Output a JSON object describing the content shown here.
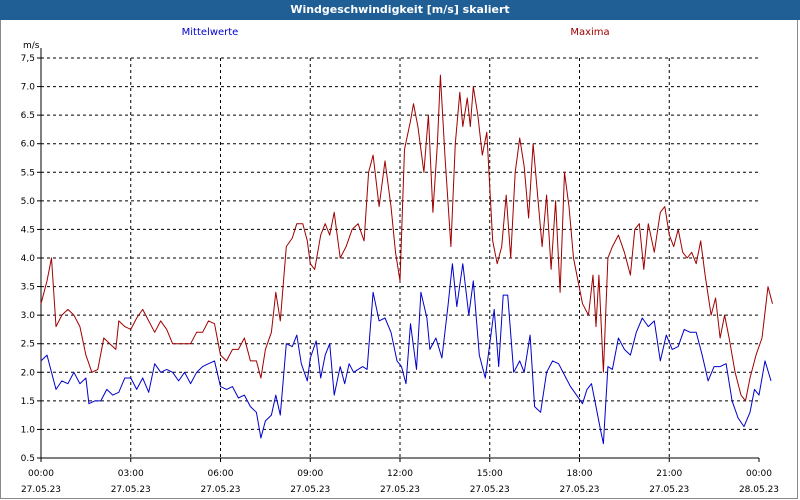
{
  "window": {
    "title": "Windgeschwindigkeit [m/s] skaliert"
  },
  "colors": {
    "mean": "#0000cc",
    "max": "#a00000",
    "title_bar": "#1f5f96",
    "grid": "#000000"
  },
  "chart_data": {
    "type": "line",
    "title": "Windgeschwindigkeit [m/s] skaliert",
    "ylabel": "m/s",
    "ylim": [
      0.5,
      7.5
    ],
    "xlim": [
      0,
      24
    ],
    "grid": true,
    "yticks": [
      "0.5",
      "1.0",
      "1.5",
      "2.0",
      "2.5",
      "3.0",
      "3.5",
      "4.0",
      "4.5",
      "5.0",
      "5.5",
      "6.0",
      "6.5",
      "7.0",
      "7,5"
    ],
    "xticks": [
      {
        "x": 0,
        "time": "00:00",
        "date": "27.05.23"
      },
      {
        "x": 3,
        "time": "03:00",
        "date": "27.05.23"
      },
      {
        "x": 6,
        "time": "06:00",
        "date": "27.05.23"
      },
      {
        "x": 9,
        "time": "09:00",
        "date": "27.05.23"
      },
      {
        "x": 12,
        "time": "12:00",
        "date": "27.05.23"
      },
      {
        "x": 15,
        "time": "15:00",
        "date": "27.05.23"
      },
      {
        "x": 18,
        "time": "18:00",
        "date": "27.05.23"
      },
      {
        "x": 21,
        "time": "21:00",
        "date": "27.05.23"
      },
      {
        "x": 24,
        "time": "00:00",
        "date": "28.05.23"
      }
    ],
    "series": [
      {
        "name": "Mittelwerte",
        "color": "#0000cc",
        "points": [
          [
            0,
            2.2
          ],
          [
            0.2,
            2.3
          ],
          [
            0.5,
            1.7
          ],
          [
            0.7,
            1.85
          ],
          [
            0.9,
            1.8
          ],
          [
            1.1,
            2.0
          ],
          [
            1.3,
            1.8
          ],
          [
            1.5,
            1.9
          ],
          [
            1.6,
            1.45
          ],
          [
            1.8,
            1.5
          ],
          [
            2.0,
            1.5
          ],
          [
            2.2,
            1.7
          ],
          [
            2.4,
            1.6
          ],
          [
            2.6,
            1.65
          ],
          [
            2.8,
            1.9
          ],
          [
            3.0,
            1.9
          ],
          [
            3.2,
            1.7
          ],
          [
            3.4,
            1.9
          ],
          [
            3.6,
            1.65
          ],
          [
            3.8,
            2.15
          ],
          [
            4.0,
            2.0
          ],
          [
            4.2,
            2.05
          ],
          [
            4.4,
            2.0
          ],
          [
            4.6,
            1.85
          ],
          [
            4.8,
            2.0
          ],
          [
            5.0,
            1.8
          ],
          [
            5.2,
            2.0
          ],
          [
            5.4,
            2.1
          ],
          [
            5.6,
            2.15
          ],
          [
            5.8,
            2.2
          ],
          [
            6.0,
            1.75
          ],
          [
            6.2,
            1.7
          ],
          [
            6.4,
            1.75
          ],
          [
            6.6,
            1.55
          ],
          [
            6.8,
            1.6
          ],
          [
            7.0,
            1.4
          ],
          [
            7.2,
            1.3
          ],
          [
            7.35,
            0.85
          ],
          [
            7.5,
            1.15
          ],
          [
            7.7,
            1.25
          ],
          [
            7.85,
            1.6
          ],
          [
            8.0,
            1.25
          ],
          [
            8.2,
            2.5
          ],
          [
            8.4,
            2.45
          ],
          [
            8.55,
            2.65
          ],
          [
            8.7,
            2.15
          ],
          [
            8.9,
            1.85
          ],
          [
            9.0,
            2.25
          ],
          [
            9.2,
            2.55
          ],
          [
            9.35,
            1.9
          ],
          [
            9.5,
            2.3
          ],
          [
            9.65,
            2.5
          ],
          [
            9.8,
            1.6
          ],
          [
            10.0,
            2.1
          ],
          [
            10.15,
            1.8
          ],
          [
            10.3,
            2.15
          ],
          [
            10.45,
            2.0
          ],
          [
            10.6,
            2.05
          ],
          [
            10.75,
            2.1
          ],
          [
            10.9,
            2.05
          ],
          [
            11.1,
            3.4
          ],
          [
            11.3,
            2.9
          ],
          [
            11.5,
            2.95
          ],
          [
            11.7,
            2.7
          ],
          [
            11.9,
            2.2
          ],
          [
            12.05,
            2.1
          ],
          [
            12.2,
            1.8
          ],
          [
            12.35,
            2.85
          ],
          [
            12.55,
            2.05
          ],
          [
            12.7,
            3.4
          ],
          [
            12.9,
            2.95
          ],
          [
            13.0,
            2.4
          ],
          [
            13.2,
            2.6
          ],
          [
            13.4,
            2.25
          ],
          [
            13.6,
            3.15
          ],
          [
            13.75,
            3.9
          ],
          [
            13.9,
            3.15
          ],
          [
            14.1,
            3.9
          ],
          [
            14.3,
            3.0
          ],
          [
            14.45,
            3.6
          ],
          [
            14.65,
            2.3
          ],
          [
            14.85,
            1.9
          ],
          [
            15.0,
            2.5
          ],
          [
            15.15,
            3.1
          ],
          [
            15.3,
            2.1
          ],
          [
            15.45,
            3.35
          ],
          [
            15.6,
            3.35
          ],
          [
            15.8,
            2.0
          ],
          [
            16.0,
            2.2
          ],
          [
            16.15,
            2.0
          ],
          [
            16.35,
            2.65
          ],
          [
            16.5,
            1.4
          ],
          [
            16.7,
            1.3
          ],
          [
            16.9,
            2.0
          ],
          [
            17.1,
            2.2
          ],
          [
            17.3,
            2.15
          ],
          [
            17.5,
            1.95
          ],
          [
            17.7,
            1.75
          ],
          [
            17.9,
            1.6
          ],
          [
            18.1,
            1.45
          ],
          [
            18.25,
            1.7
          ],
          [
            18.4,
            1.8
          ],
          [
            18.55,
            1.4
          ],
          [
            18.7,
            1.0
          ],
          [
            18.8,
            0.75
          ],
          [
            18.95,
            2.1
          ],
          [
            19.1,
            2.05
          ],
          [
            19.3,
            2.6
          ],
          [
            19.5,
            2.4
          ],
          [
            19.7,
            2.3
          ],
          [
            19.9,
            2.7
          ],
          [
            20.1,
            2.95
          ],
          [
            20.3,
            2.8
          ],
          [
            20.5,
            2.9
          ],
          [
            20.7,
            2.2
          ],
          [
            20.9,
            2.65
          ],
          [
            21.1,
            2.4
          ],
          [
            21.3,
            2.45
          ],
          [
            21.5,
            2.75
          ],
          [
            21.7,
            2.7
          ],
          [
            21.9,
            2.7
          ],
          [
            22.1,
            2.3
          ],
          [
            22.3,
            1.85
          ],
          [
            22.5,
            2.1
          ],
          [
            22.7,
            2.1
          ],
          [
            22.9,
            2.15
          ],
          [
            23.1,
            1.5
          ],
          [
            23.3,
            1.2
          ],
          [
            23.5,
            1.05
          ],
          [
            23.7,
            1.3
          ],
          [
            23.85,
            1.7
          ],
          [
            24.0,
            1.6
          ],
          [
            24.2,
            2.2
          ],
          [
            24.4,
            1.85
          ]
        ]
      },
      {
        "name": "Maxima",
        "color": "#a00000",
        "points": [
          [
            0,
            3.2
          ],
          [
            0.2,
            3.6
          ],
          [
            0.35,
            4.0
          ],
          [
            0.5,
            2.8
          ],
          [
            0.7,
            3.0
          ],
          [
            0.9,
            3.1
          ],
          [
            1.1,
            3.0
          ],
          [
            1.3,
            2.8
          ],
          [
            1.5,
            2.3
          ],
          [
            1.7,
            2.0
          ],
          [
            1.9,
            2.05
          ],
          [
            2.1,
            2.6
          ],
          [
            2.3,
            2.5
          ],
          [
            2.5,
            2.4
          ],
          [
            2.6,
            2.9
          ],
          [
            2.8,
            2.8
          ],
          [
            3.0,
            2.75
          ],
          [
            3.2,
            2.95
          ],
          [
            3.4,
            3.1
          ],
          [
            3.6,
            2.9
          ],
          [
            3.8,
            2.7
          ],
          [
            4.0,
            2.9
          ],
          [
            4.2,
            2.75
          ],
          [
            4.4,
            2.5
          ],
          [
            4.6,
            2.5
          ],
          [
            4.8,
            2.5
          ],
          [
            5.0,
            2.5
          ],
          [
            5.2,
            2.7
          ],
          [
            5.4,
            2.7
          ],
          [
            5.6,
            2.9
          ],
          [
            5.8,
            2.85
          ],
          [
            6.0,
            2.3
          ],
          [
            6.2,
            2.2
          ],
          [
            6.4,
            2.4
          ],
          [
            6.6,
            2.4
          ],
          [
            6.8,
            2.6
          ],
          [
            7.0,
            2.2
          ],
          [
            7.2,
            2.2
          ],
          [
            7.35,
            1.9
          ],
          [
            7.5,
            2.4
          ],
          [
            7.7,
            2.7
          ],
          [
            7.85,
            3.4
          ],
          [
            8.0,
            2.9
          ],
          [
            8.2,
            4.2
          ],
          [
            8.4,
            4.35
          ],
          [
            8.55,
            4.6
          ],
          [
            8.75,
            4.6
          ],
          [
            8.9,
            4.3
          ],
          [
            9.0,
            3.9
          ],
          [
            9.15,
            3.8
          ],
          [
            9.35,
            4.4
          ],
          [
            9.5,
            4.6
          ],
          [
            9.65,
            4.4
          ],
          [
            9.8,
            4.8
          ],
          [
            10.0,
            4.0
          ],
          [
            10.2,
            4.2
          ],
          [
            10.4,
            4.5
          ],
          [
            10.6,
            4.6
          ],
          [
            10.8,
            4.3
          ],
          [
            10.95,
            5.5
          ],
          [
            11.1,
            5.8
          ],
          [
            11.3,
            4.9
          ],
          [
            11.5,
            5.7
          ],
          [
            11.7,
            4.9
          ],
          [
            11.85,
            4.1
          ],
          [
            12.0,
            3.6
          ],
          [
            12.15,
            5.9
          ],
          [
            12.35,
            6.4
          ],
          [
            12.45,
            6.7
          ],
          [
            12.6,
            6.3
          ],
          [
            12.8,
            5.5
          ],
          [
            12.95,
            6.5
          ],
          [
            13.1,
            4.8
          ],
          [
            13.25,
            6.0
          ],
          [
            13.35,
            7.2
          ],
          [
            13.5,
            5.8
          ],
          [
            13.7,
            4.2
          ],
          [
            13.85,
            6.0
          ],
          [
            14.0,
            6.9
          ],
          [
            14.1,
            6.3
          ],
          [
            14.25,
            6.8
          ],
          [
            14.35,
            6.3
          ],
          [
            14.45,
            7.0
          ],
          [
            14.6,
            6.5
          ],
          [
            14.75,
            5.8
          ],
          [
            14.9,
            6.2
          ],
          [
            15.1,
            4.3
          ],
          [
            15.25,
            3.9
          ],
          [
            15.4,
            4.2
          ],
          [
            15.55,
            5.1
          ],
          [
            15.7,
            4.0
          ],
          [
            15.85,
            5.5
          ],
          [
            16.0,
            6.1
          ],
          [
            16.15,
            5.6
          ],
          [
            16.3,
            4.7
          ],
          [
            16.45,
            6.0
          ],
          [
            16.6,
            5.1
          ],
          [
            16.75,
            4.2
          ],
          [
            16.9,
            5.1
          ],
          [
            17.05,
            3.8
          ],
          [
            17.2,
            5.0
          ],
          [
            17.35,
            3.4
          ],
          [
            17.5,
            5.5
          ],
          [
            17.65,
            4.9
          ],
          [
            17.8,
            4.0
          ],
          [
            17.95,
            3.6
          ],
          [
            18.1,
            3.2
          ],
          [
            18.3,
            3.0
          ],
          [
            18.45,
            3.7
          ],
          [
            18.55,
            2.8
          ],
          [
            18.65,
            3.7
          ],
          [
            18.8,
            2.0
          ],
          [
            18.95,
            4.0
          ],
          [
            19.1,
            4.2
          ],
          [
            19.3,
            4.4
          ],
          [
            19.5,
            4.1
          ],
          [
            19.7,
            3.7
          ],
          [
            19.85,
            4.5
          ],
          [
            20.0,
            4.6
          ],
          [
            20.15,
            3.8
          ],
          [
            20.3,
            4.6
          ],
          [
            20.5,
            4.1
          ],
          [
            20.7,
            4.8
          ],
          [
            20.85,
            4.9
          ],
          [
            21.0,
            4.4
          ],
          [
            21.15,
            4.2
          ],
          [
            21.3,
            4.5
          ],
          [
            21.45,
            4.1
          ],
          [
            21.6,
            4.0
          ],
          [
            21.75,
            4.1
          ],
          [
            21.9,
            3.9
          ],
          [
            22.05,
            4.3
          ],
          [
            22.2,
            3.7
          ],
          [
            22.4,
            3.0
          ],
          [
            22.55,
            3.3
          ],
          [
            22.7,
            2.6
          ],
          [
            22.85,
            3.0
          ],
          [
            23.0,
            2.6
          ],
          [
            23.2,
            2.0
          ],
          [
            23.4,
            1.6
          ],
          [
            23.55,
            1.5
          ],
          [
            23.7,
            1.9
          ],
          [
            23.9,
            2.3
          ],
          [
            24.1,
            2.6
          ],
          [
            24.3,
            3.5
          ],
          [
            24.45,
            3.2
          ]
        ]
      }
    ]
  }
}
